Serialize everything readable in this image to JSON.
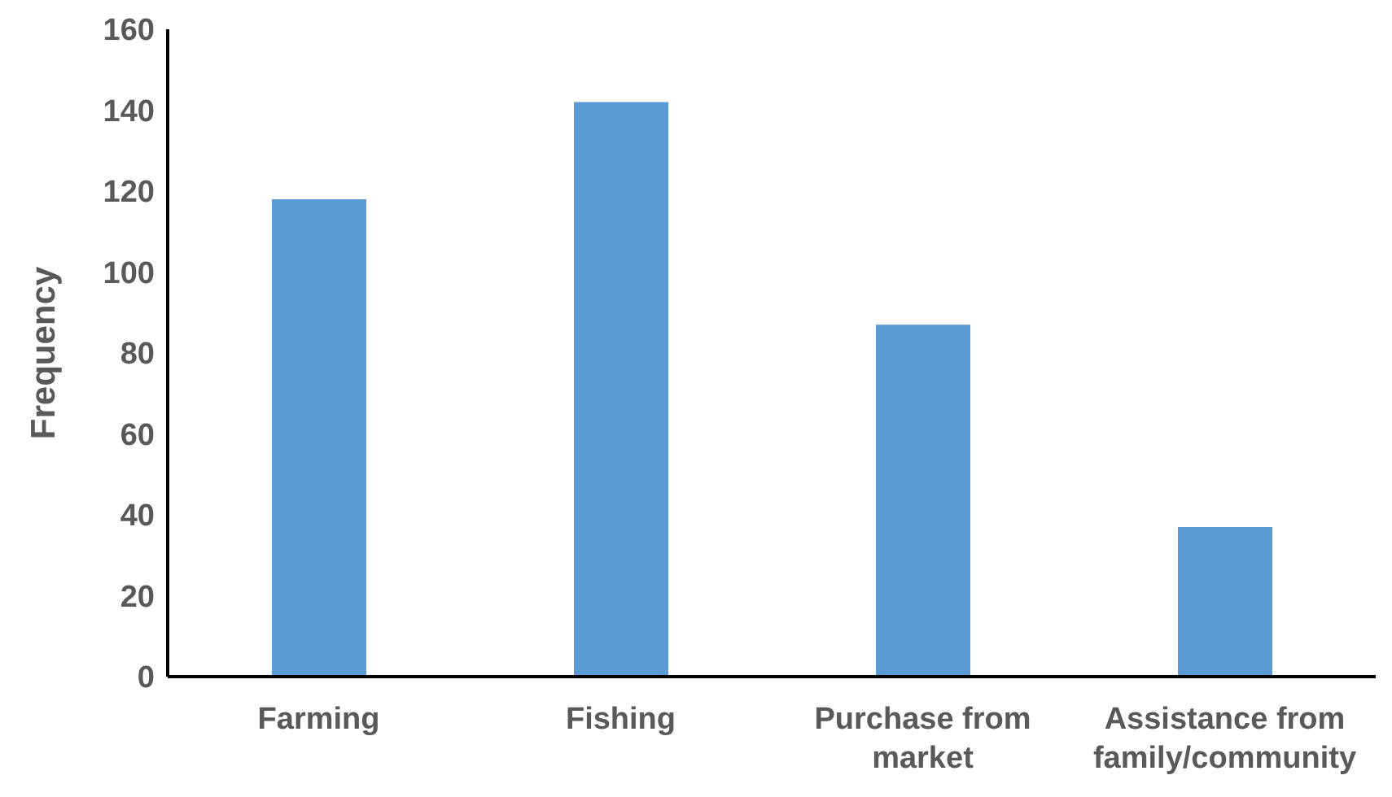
{
  "chart_data": {
    "type": "bar",
    "ylabel": "Frequency",
    "categories": [
      "Farming",
      "Fishing",
      "Purchase from market",
      "Assistance from family/community"
    ],
    "values": [
      118,
      142,
      87,
      37
    ],
    "color": "#5b9bd5",
    "ylim": [
      0,
      160
    ],
    "yticks": [
      0,
      20,
      40,
      60,
      80,
      100,
      120,
      140,
      160
    ],
    "grid": false,
    "legend": false
  }
}
